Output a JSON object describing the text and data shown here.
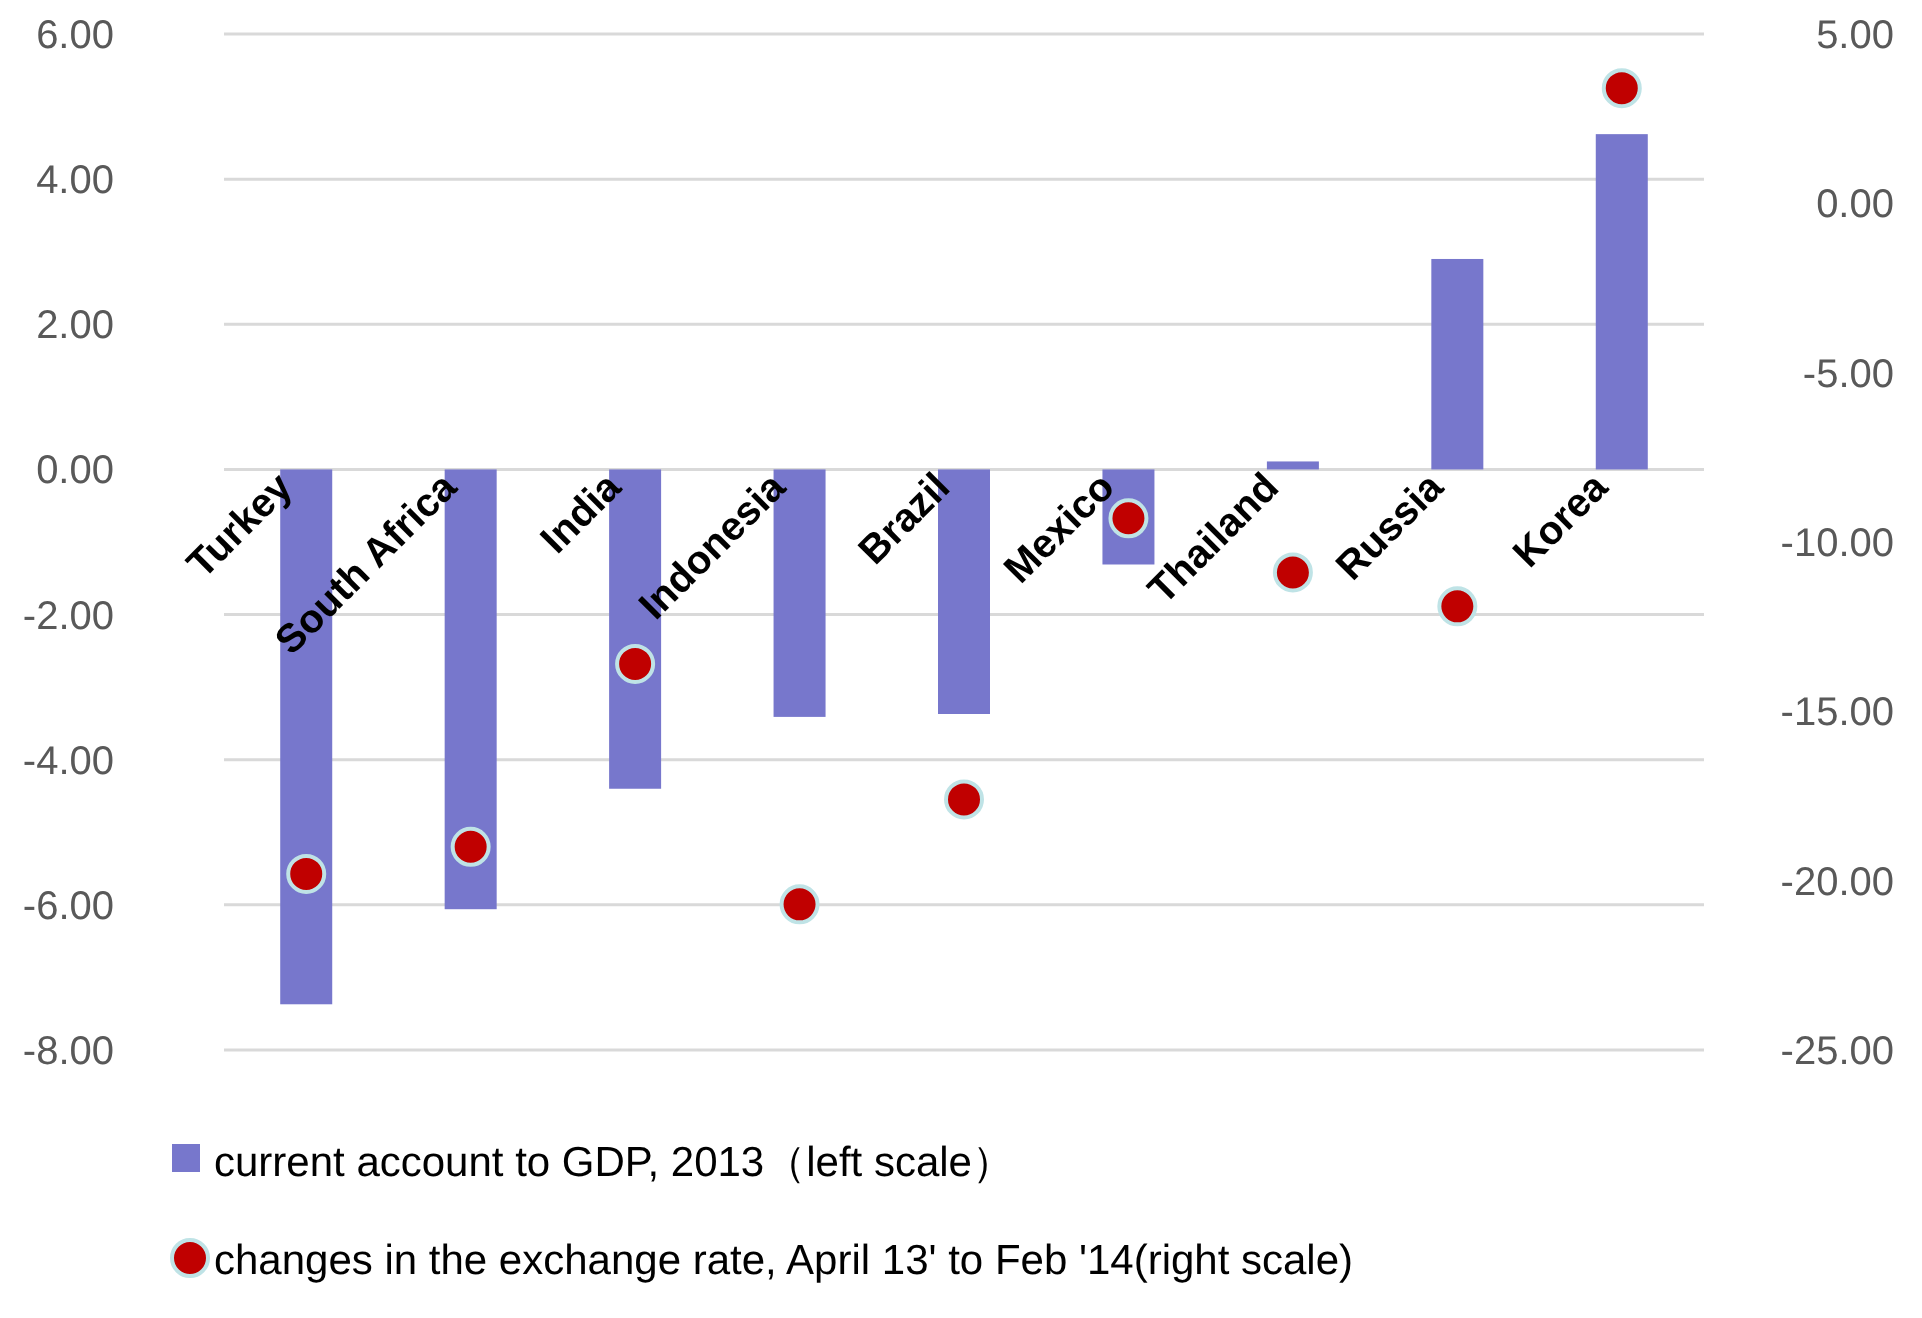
{
  "chart_data": {
    "type": "bar",
    "categories": [
      "Turkey",
      "South Africa",
      "India",
      "Indonesia",
      "Brazil",
      "Mexico",
      "Thailand",
      "Russia",
      "Korea"
    ],
    "series": [
      {
        "name": "current account to GDP, 2013（left scale）",
        "color": "#7777cc",
        "values": [
          -7.37,
          -6.06,
          -4.4,
          -3.41,
          -3.37,
          -1.31,
          0.11,
          2.9,
          4.62
        ]
      },
      {
        "name": "changes in the exchange rate, April 13' to Feb '14(right scale)",
        "type": "scatter",
        "axis": "y2",
        "marker": "circle",
        "color": "#c00000",
        "values": [
          -19.8,
          -19.0,
          -13.6,
          -20.7,
          -17.6,
          -9.3,
          -10.9,
          -11.9,
          3.4
        ]
      }
    ],
    "ylim": [
      -8,
      6
    ],
    "yticks": [
      {
        "value": -8,
        "label": "-8.00"
      },
      {
        "value": -6,
        "label": "-6.00"
      },
      {
        "value": -4,
        "label": "-4.00"
      },
      {
        "value": -2,
        "label": "-2.00"
      },
      {
        "value": 0,
        "label": "0.00"
      },
      {
        "value": 2,
        "label": "2.00"
      },
      {
        "value": 4,
        "label": "4.00"
      },
      {
        "value": 6,
        "label": "6.00"
      }
    ],
    "y2lim": [
      -25,
      5
    ],
    "y2ticks": [
      {
        "value": -25,
        "label": "-25.00"
      },
      {
        "value": -20,
        "label": "-20.00"
      },
      {
        "value": -15,
        "label": "-15.00"
      },
      {
        "value": -10,
        "label": "-10.00"
      },
      {
        "value": -5,
        "label": "-5.00"
      },
      {
        "value": 0,
        "label": "0.00"
      },
      {
        "value": 5,
        "label": "5.00"
      }
    ],
    "grid": "y",
    "legend": "bottom"
  }
}
